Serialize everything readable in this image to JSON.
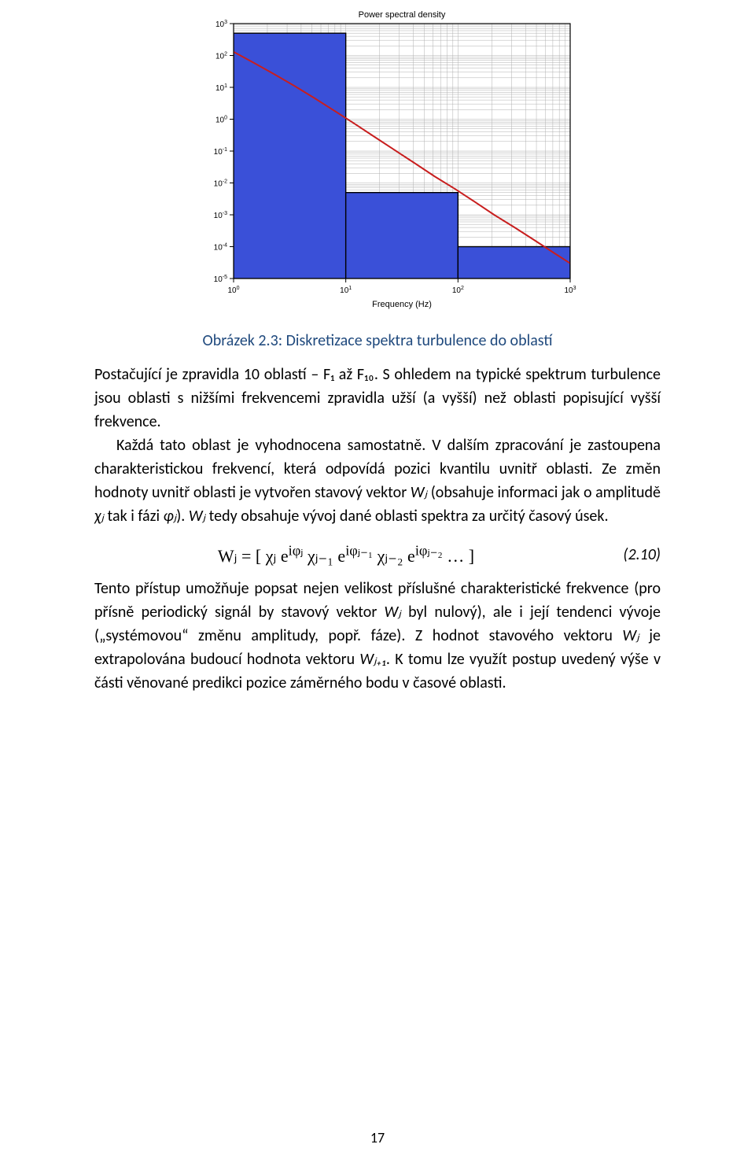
{
  "chart": {
    "type": "bar+line",
    "title": "Power spectral density",
    "xlabel": "Frequency (Hz)",
    "title_fontsize": 11,
    "label_fontsize": 11,
    "tick_fontsize": 10,
    "background_color": "#ffffff",
    "plot_bg": "#ffffff",
    "axis_color": "#000000",
    "grid_color": "#b0b0b0",
    "xscale": "log",
    "yscale": "log",
    "xlim": [
      1,
      1000
    ],
    "ylim": [
      1e-05,
      1000
    ],
    "xticks": [
      1,
      10,
      100,
      1000
    ],
    "xtick_labels": [
      "10",
      "10",
      "10",
      "10"
    ],
    "xtick_exponents": [
      "0",
      "1",
      "2",
      "3"
    ],
    "yticks": [
      1e-05,
      0.0001,
      0.001,
      0.01,
      0.1,
      1,
      10,
      100,
      1000
    ],
    "ytick_labels": [
      "10",
      "10",
      "10",
      "10",
      "10",
      "10",
      "10",
      "10",
      "10"
    ],
    "ytick_exponents": [
      "-5",
      "-4",
      "-3",
      "-2",
      "-1",
      "0",
      "1",
      "2",
      "3"
    ],
    "bars": [
      {
        "x0": 1,
        "x1": 10,
        "y": 500
      },
      {
        "x0": 10,
        "x1": 100,
        "y": 0.005
      },
      {
        "x0": 100,
        "x1": 1000,
        "y": 0.0001
      }
    ],
    "bar_fill": "#3a50d8",
    "bar_edge": "#000000",
    "bar_edge_width": 1.4,
    "curve": {
      "color": "#c81e1e",
      "width": 2,
      "points_x": [
        1,
        1.5,
        2.3,
        3.5,
        5.3,
        8,
        12,
        18,
        27,
        41,
        62,
        94,
        140,
        210,
        320,
        480,
        720,
        1000
      ],
      "points_y": [
        130,
        60,
        26,
        11,
        4.5,
        1.8,
        0.72,
        0.28,
        0.11,
        0.042,
        0.016,
        0.0065,
        0.0026,
        0.001,
        0.0004,
        0.00016,
        6.3e-05,
        3e-05
      ]
    }
  },
  "caption": {
    "label": "Obrázek 2.3",
    "sep": ": ",
    "text": "Diskretizace spektra turbulence do oblastí",
    "color": "#1f497d"
  },
  "paragraphs": {
    "p1": "Postačující je zpravidla 10 oblastí – F₁ až F₁₀. S ohledem na typické spektrum turbulence jsou oblasti s nižšími frekvencemi zpravidla užší (a vyšší) než oblasti popisující vyšší frekvence.",
    "p2_a": "Každá tato oblast je vyhodnocena samostatně. V dalším zpracování je zastoupena charakteristickou frekvencí, která odpovídá pozici kvantilu uvnitř oblasti. Ze změn hodnoty uvnitř oblasti je vytvořen stavový vektor ",
    "p2_b": " (obsahuje informaci jak o amplitudě ",
    "p2_c": " tak i fázi ",
    "p2_d": "). ",
    "p2_e": " tedy obsahuje vývoj dané oblasti spektra za určitý časový úsek.",
    "p3_a": "Tento přístup umožňuje popsat nejen velikost příslušné charakteristické frekvence (pro přísně periodický signál by stavový vektor ",
    "p3_b": " byl nulový), ale i její tendenci vývoje („systémovou“ změnu amplitudy, popř. fáze). Z hodnot stavového vektoru ",
    "p3_c": " je extrapolována budoucí hodnota vektoru ",
    "p3_d": ". K tomu lze využít postup uvedený výše v části věnované predikci pozice záměrného bodu v časové oblasti."
  },
  "inline_math": {
    "Wj": "Wⱼ",
    "chi_j": "χⱼ",
    "phi_j": "φⱼ",
    "Wj1": "Wⱼ₊₁"
  },
  "equation": {
    "text": "Wⱼ = [ χⱼ e^{iφⱼ}   χⱼ₋₁ e^{iφⱼ₋₁}   χⱼ₋₂ e^{iφⱼ₋₂}  … ]",
    "number": "(2.10)"
  },
  "page_number": "17"
}
